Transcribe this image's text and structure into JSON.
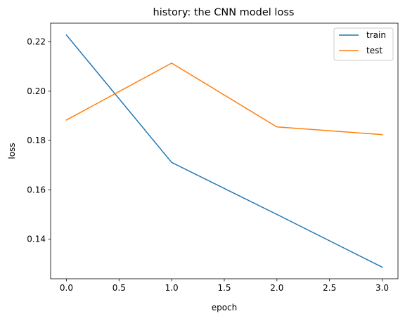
{
  "chart_data": {
    "type": "line",
    "title": "history: the CNN model loss",
    "xlabel": "epoch",
    "ylabel": "loss",
    "x": [
      0,
      1,
      2,
      3
    ],
    "series": [
      {
        "name": "train",
        "color": "#1f77b4",
        "values": [
          0.2228,
          0.1711,
          0.15,
          0.1286
        ]
      },
      {
        "name": "test",
        "color": "#ff7f0e",
        "values": [
          0.1883,
          0.2114,
          0.1855,
          0.1824
        ]
      }
    ],
    "xlim": [
      -0.15,
      3.15
    ],
    "ylim": [
      0.1239,
      0.2276
    ],
    "xticks": [
      0.0,
      0.5,
      1.0,
      1.5,
      2.0,
      2.5,
      3.0
    ],
    "xtick_labels": [
      "0.0",
      "0.5",
      "1.0",
      "1.5",
      "2.0",
      "2.5",
      "3.0"
    ],
    "yticks": [
      0.14,
      0.16,
      0.18,
      0.2,
      0.22
    ],
    "ytick_labels": [
      "0.14",
      "0.16",
      "0.18",
      "0.20",
      "0.22"
    ],
    "grid": false,
    "legend_position": "top-right"
  }
}
